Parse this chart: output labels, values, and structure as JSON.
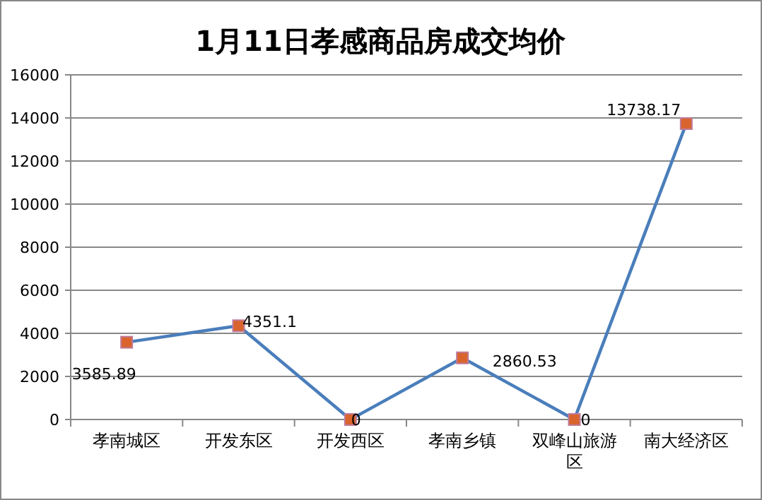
{
  "chart_data": {
    "type": "line",
    "title": "1月11日孝感商品房成交均价",
    "categories": [
      "孝南城区",
      "开发东区",
      "开发西区",
      "孝南乡镇",
      "双峰山旅游区",
      "南大经济区"
    ],
    "series": [
      {
        "color": "#4a7ebb",
        "values": [
          3585.89,
          4351.1,
          0,
          2860.53,
          0,
          13738.17
        ]
      }
    ],
    "ylim": [
      0,
      16000
    ],
    "yticks": [
      0,
      2000,
      4000,
      6000,
      8000,
      10000,
      12000,
      14000,
      16000
    ],
    "grid": "y",
    "marker": "square",
    "data_labels": true
  }
}
